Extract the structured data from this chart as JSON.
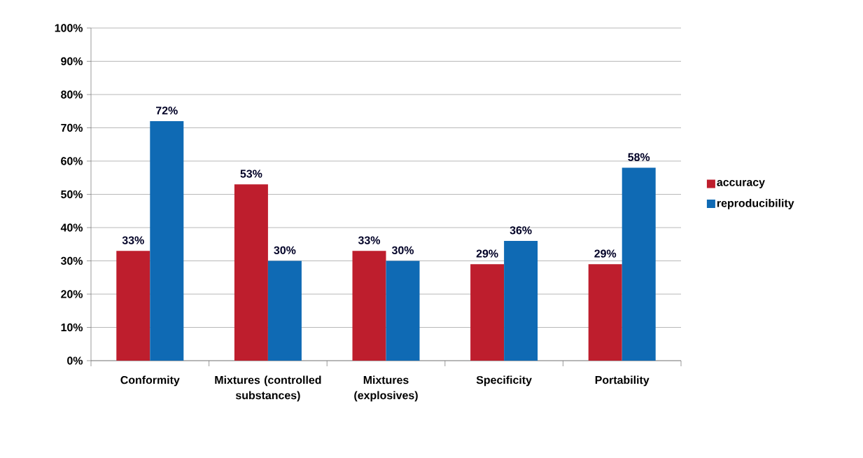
{
  "chart_data": {
    "type": "bar",
    "categories": [
      "Conformity",
      "Mixtures (controlled substances)",
      "Mixtures (explosives)",
      "Specificity",
      "Portability"
    ],
    "series": [
      {
        "name": "accuracy",
        "color": "#be1e2d",
        "values": [
          33,
          53,
          33,
          29,
          29
        ],
        "value_labels": [
          "33%",
          "53%",
          "33%",
          "29%",
          "29%"
        ]
      },
      {
        "name": "reproducibility",
        "color": "#0f6ab4",
        "values": [
          72,
          30,
          30,
          36,
          58
        ],
        "value_labels": [
          "72%",
          "30%",
          "30%",
          "36%",
          "58%"
        ]
      }
    ],
    "ylim": [
      0,
      100
    ],
    "yticks": [
      {
        "value": 0,
        "label": "0%"
      },
      {
        "value": 10,
        "label": "10%"
      },
      {
        "value": 20,
        "label": "20%"
      },
      {
        "value": 30,
        "label": "30%"
      },
      {
        "value": 40,
        "label": "40%"
      },
      {
        "value": 50,
        "label": "50%"
      },
      {
        "value": 60,
        "label": "60%"
      },
      {
        "value": 70,
        "label": "70%"
      },
      {
        "value": 80,
        "label": "80%"
      },
      {
        "value": 90,
        "label": "90%"
      },
      {
        "value": 100,
        "label": "100%"
      }
    ],
    "grid": "y",
    "legend": "right"
  }
}
